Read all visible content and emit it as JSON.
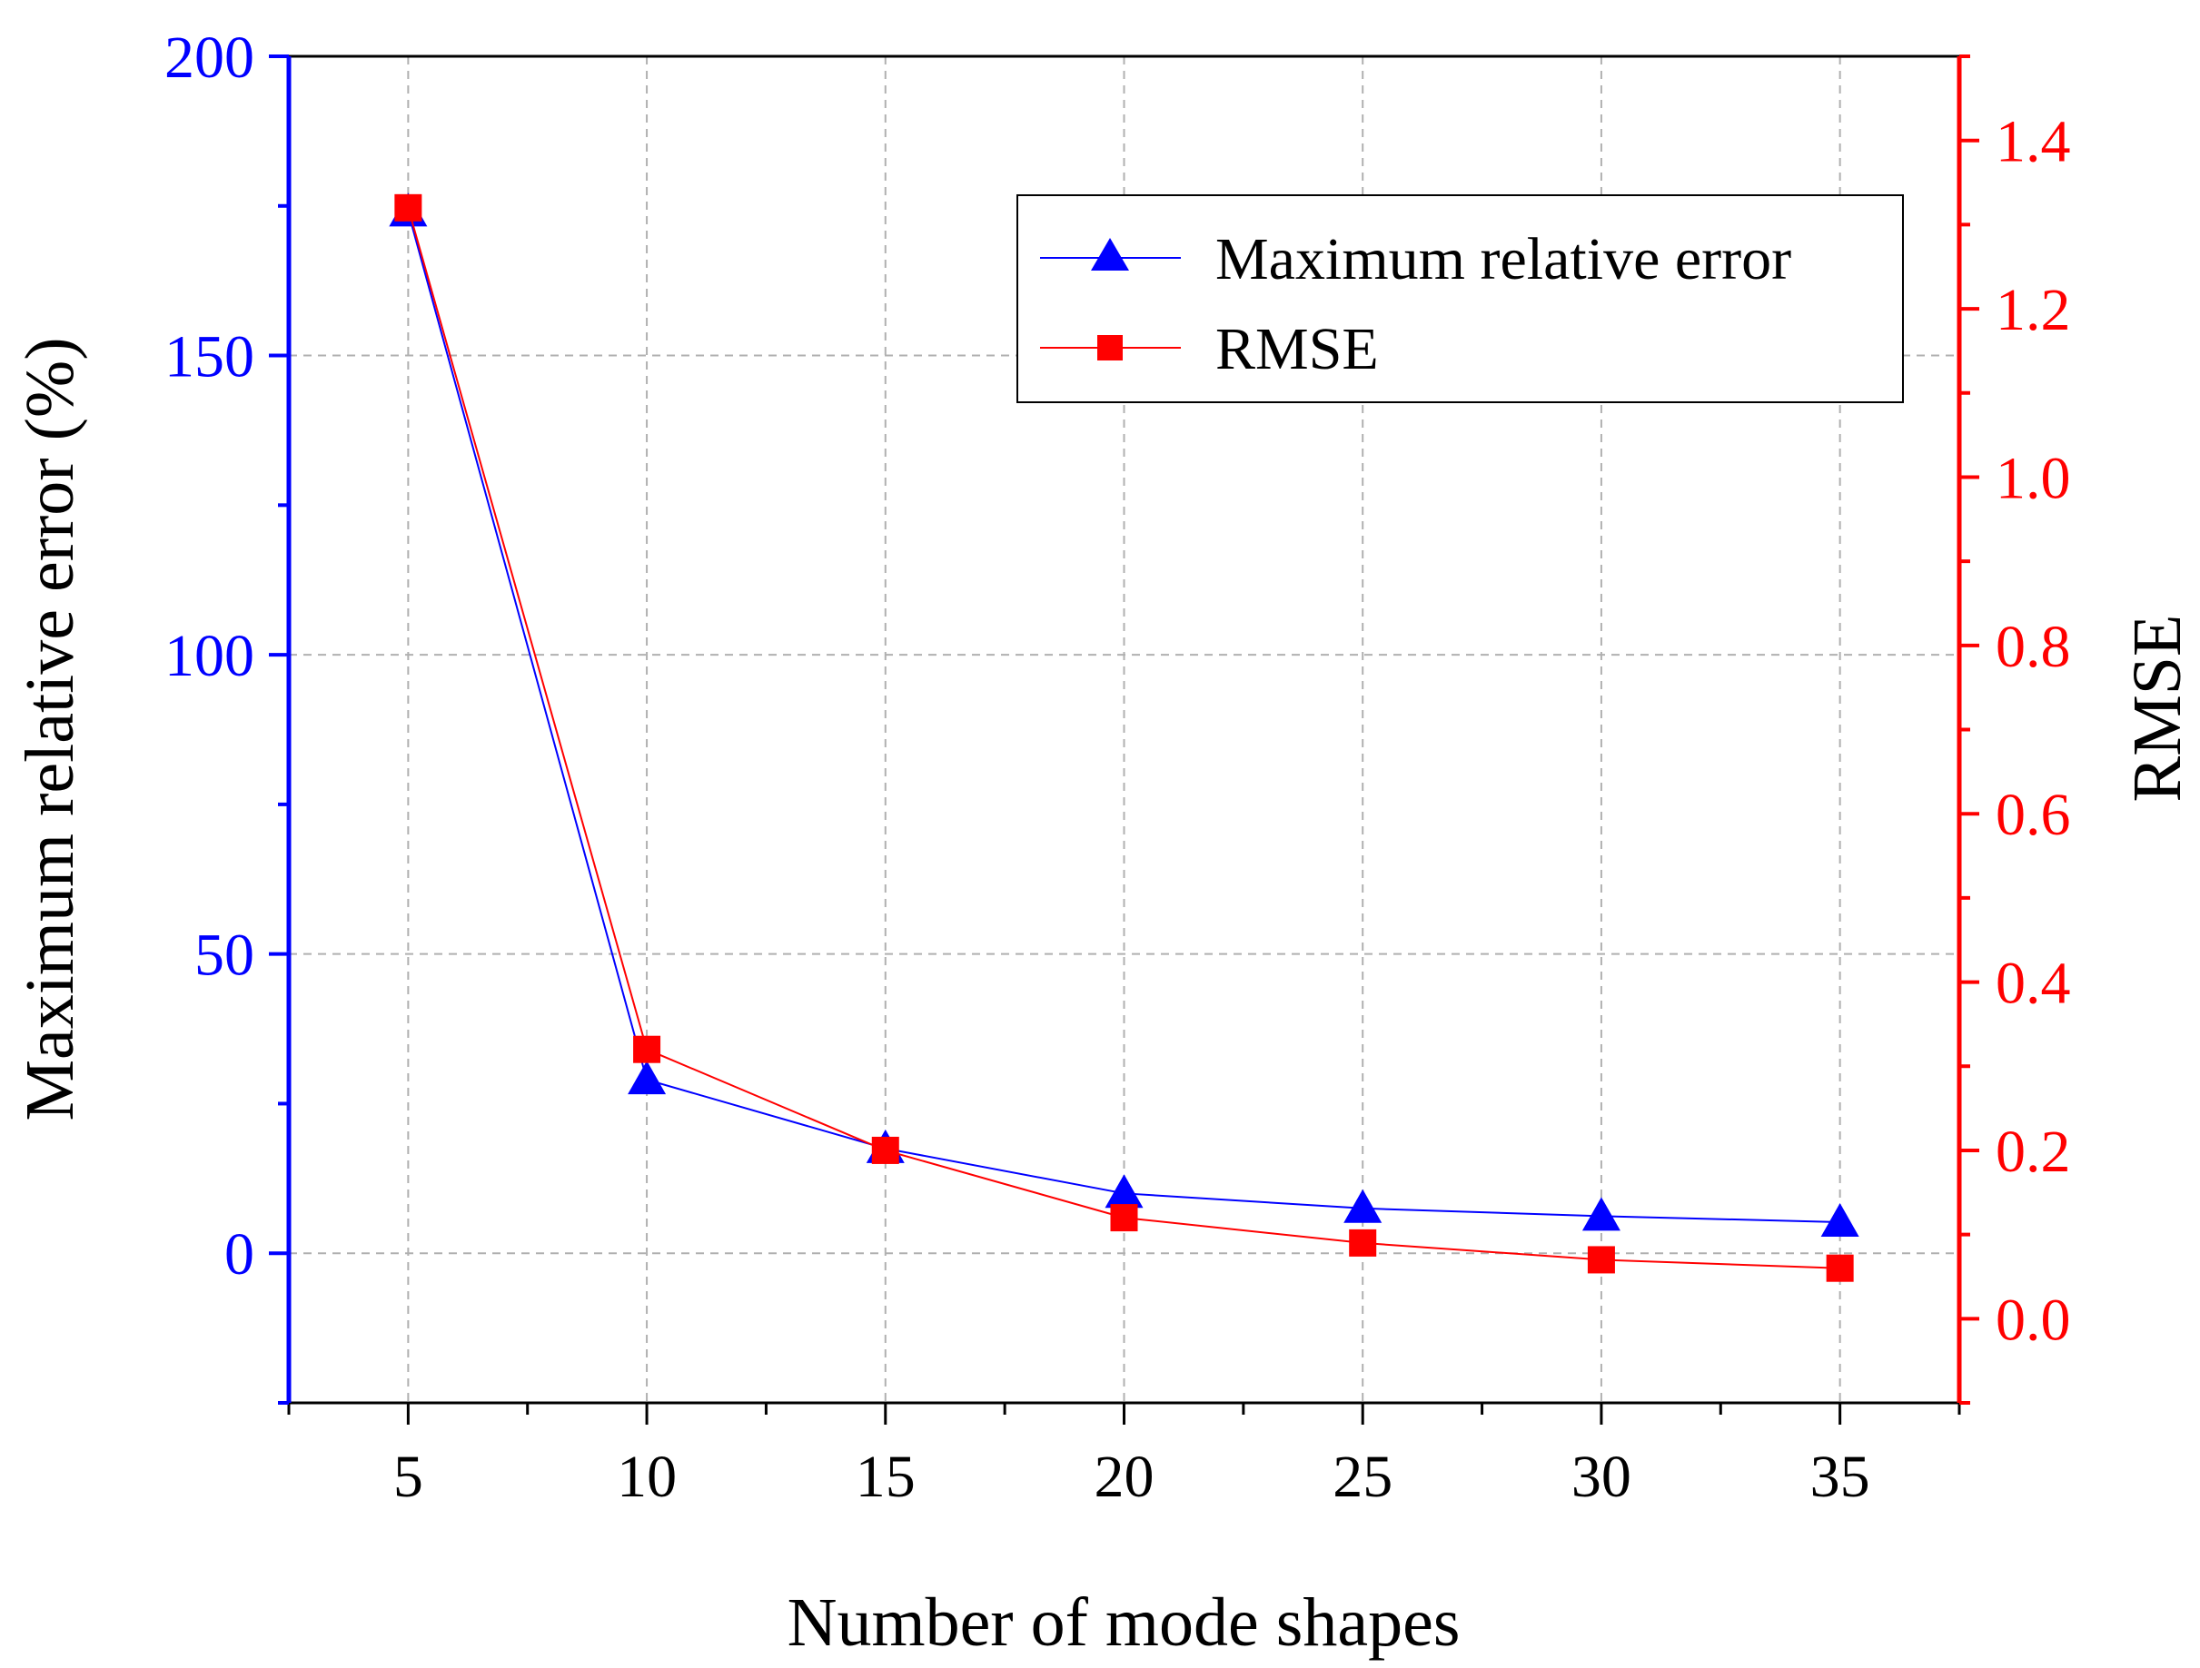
{
  "chart_data": {
    "type": "line",
    "title": "",
    "xlabel": "Number of mode shapes",
    "ylabel_left": "Maximum relative error (%)",
    "ylabel_right": "RMSE",
    "x": [
      5,
      10,
      15,
      20,
      25,
      30,
      35
    ],
    "xlim": [
      2.5,
      37.5
    ],
    "x_ticks": [
      5,
      10,
      15,
      20,
      25,
      30,
      35
    ],
    "x_tick_labels": [
      "5",
      "10",
      "15",
      "20",
      "25",
      "30",
      "35"
    ],
    "ylim_left": [
      -25,
      200
    ],
    "y_left_ticks": [
      0,
      50,
      100,
      150,
      200
    ],
    "y_left_tick_labels": [
      "0",
      "50",
      "100",
      "150",
      "200"
    ],
    "ylim_right": [
      -0.1,
      1.5
    ],
    "y_right_ticks": [
      0.0,
      0.2,
      0.4,
      0.6,
      0.8,
      1.0,
      1.2,
      1.4
    ],
    "y_right_tick_labels": [
      "0.0",
      "0.2",
      "0.4",
      "0.6",
      "0.8",
      "1.0",
      "1.2",
      "1.4"
    ],
    "grid": true,
    "legend_position": "top-right",
    "series": [
      {
        "name": "Maximum relative error",
        "axis": "left",
        "marker": "triangle",
        "color": "#0000ff",
        "values": [
          174,
          29,
          17.5,
          10,
          7.5,
          6.2,
          5.2
        ]
      },
      {
        "name": "RMSE",
        "axis": "right",
        "marker": "square",
        "color": "#ff0000",
        "values": [
          1.32,
          0.32,
          0.2,
          0.12,
          0.09,
          0.07,
          0.06
        ]
      }
    ]
  }
}
